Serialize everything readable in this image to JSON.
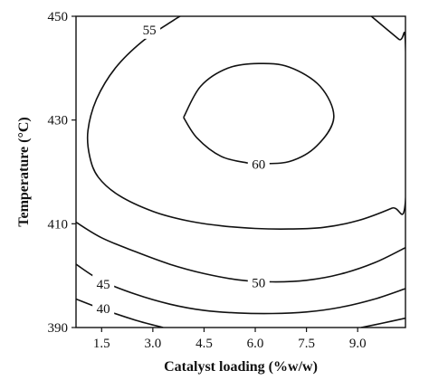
{
  "chart_data": {
    "type": "contour",
    "title": "",
    "xlabel": "Catalyst loading (%w/w)",
    "ylabel": "Temperature (°C)",
    "xlim": [
      0.75,
      10.4
    ],
    "ylim": [
      390,
      450
    ],
    "xticks": [
      1.5,
      3.0,
      4.5,
      6.0,
      7.5,
      9.0
    ],
    "xtick_labels": [
      "1.5",
      "3.0",
      "4.5",
      "6.0",
      "7.5",
      "9.0"
    ],
    "yticks": [
      390,
      410,
      430,
      450
    ],
    "ytick_labels": [
      "390",
      "410",
      "430",
      "450"
    ],
    "grid": false,
    "contours": [
      {
        "level": 60,
        "label": "60",
        "label_at": [
          6.1,
          421.5
        ],
        "points": [
          [
            3.9,
            430.5
          ],
          [
            4.3,
            426.5
          ],
          [
            5.0,
            423.0
          ],
          [
            5.8,
            421.7
          ],
          [
            6.1,
            421.6
          ],
          [
            7.0,
            422.0
          ],
          [
            7.8,
            425.0
          ],
          [
            8.3,
            430.5
          ],
          [
            7.9,
            436.5
          ],
          [
            7.0,
            440.2
          ],
          [
            6.1,
            440.9
          ],
          [
            5.2,
            440.0
          ],
          [
            4.4,
            436.5
          ],
          [
            3.9,
            430.5
          ]
        ]
      },
      {
        "level": 55,
        "label": "55",
        "label_at": [
          2.9,
          447.4
        ],
        "points": [
          [
            9.4,
            450.0
          ],
          [
            10.2,
            445.6
          ],
          [
            10.4,
            444.5
          ],
          [
            10.4,
            414.4
          ],
          [
            10.0,
            413.0
          ],
          [
            9.0,
            410.6
          ],
          [
            8.0,
            409.3
          ],
          [
            7.0,
            409.0
          ],
          [
            6.0,
            409.1
          ],
          [
            5.0,
            409.6
          ],
          [
            4.0,
            410.6
          ],
          [
            3.0,
            412.4
          ],
          [
            2.0,
            415.5
          ],
          [
            1.4,
            419.0
          ],
          [
            1.15,
            423.0
          ],
          [
            1.1,
            428.0
          ],
          [
            1.35,
            434.0
          ],
          [
            1.9,
            440.0
          ],
          [
            2.7,
            445.2
          ],
          [
            3.6,
            449.2
          ],
          [
            3.8,
            450.0
          ]
        ]
      },
      {
        "level": 50,
        "label": "50",
        "label_at": [
          6.1,
          398.6
        ],
        "points": [
          [
            0.75,
            410.3
          ],
          [
            1.5,
            407.3
          ],
          [
            2.5,
            404.6
          ],
          [
            3.5,
            402.2
          ],
          [
            4.5,
            400.4
          ],
          [
            5.5,
            399.2
          ],
          [
            6.5,
            398.8
          ],
          [
            7.5,
            399.1
          ],
          [
            8.5,
            400.3
          ],
          [
            9.5,
            402.5
          ],
          [
            10.4,
            405.4
          ]
        ]
      },
      {
        "level": 45,
        "label": "45",
        "label_at": [
          1.55,
          398.4
        ],
        "points": [
          [
            0.75,
            402.2
          ],
          [
            1.5,
            399.0
          ],
          [
            2.5,
            396.4
          ],
          [
            3.5,
            394.5
          ],
          [
            4.5,
            393.3
          ],
          [
            5.5,
            392.8
          ],
          [
            6.5,
            392.7
          ],
          [
            7.5,
            393.0
          ],
          [
            8.5,
            393.9
          ],
          [
            9.5,
            395.5
          ],
          [
            10.4,
            397.5
          ]
        ]
      },
      {
        "level": 40,
        "label": "40",
        "label_at": [
          1.55,
          393.7
        ],
        "points": [
          [
            0.75,
            395.5
          ],
          [
            1.5,
            393.6
          ],
          [
            2.5,
            391.4
          ],
          [
            3.3,
            390.0
          ]
        ]
      },
      {
        "level": 40,
        "label": "",
        "label_at": null,
        "points": [
          [
            9.1,
            390.0
          ],
          [
            9.7,
            390.8
          ],
          [
            10.4,
            391.8
          ]
        ]
      }
    ]
  }
}
